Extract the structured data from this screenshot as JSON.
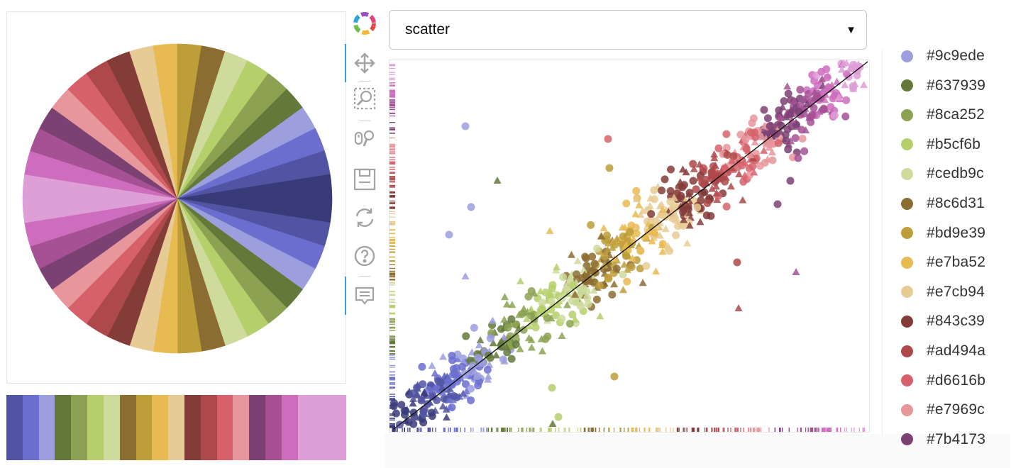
{
  "plot_type_select": {
    "value": "scatter"
  },
  "toolbar": {
    "tools": [
      {
        "name": "bokeh-logo",
        "icon": "bokeh-logo-icon"
      },
      {
        "name": "pan-tool",
        "icon": "pan-icon"
      },
      {
        "name": "box-zoom-tool",
        "icon": "box-zoom-icon"
      },
      {
        "name": "wheel-zoom-tool",
        "icon": "wheel-zoom-icon"
      },
      {
        "name": "save-tool",
        "icon": "save-icon"
      },
      {
        "name": "reset-tool",
        "icon": "reset-icon"
      },
      {
        "name": "help-tool",
        "icon": "help-icon"
      },
      {
        "name": "hover-tool",
        "icon": "hover-icon"
      }
    ]
  },
  "palette": [
    "#393b79",
    "#5254a3",
    "#6b6ecf",
    "#9c9ede",
    "#637939",
    "#8ca252",
    "#b5cf6b",
    "#cedb9c",
    "#8c6d31",
    "#bd9e39",
    "#e7ba52",
    "#e7cb94",
    "#843c39",
    "#ad494a",
    "#d6616b",
    "#e7969c",
    "#7b4173",
    "#a55194",
    "#ce6dbd",
    "#de9ed6"
  ],
  "legend": {
    "items": [
      {
        "label": "#9c9ede",
        "color": "#9c9ede"
      },
      {
        "label": "#637939",
        "color": "#637939"
      },
      {
        "label": "#8ca252",
        "color": "#8ca252"
      },
      {
        "label": "#b5cf6b",
        "color": "#b5cf6b"
      },
      {
        "label": "#cedb9c",
        "color": "#cedb9c"
      },
      {
        "label": "#8c6d31",
        "color": "#8c6d31"
      },
      {
        "label": "#bd9e39",
        "color": "#bd9e39"
      },
      {
        "label": "#e7ba52",
        "color": "#e7ba52"
      },
      {
        "label": "#e7cb94",
        "color": "#e7cb94"
      },
      {
        "label": "#843c39",
        "color": "#843c39"
      },
      {
        "label": "#ad494a",
        "color": "#ad494a"
      },
      {
        "label": "#d6616b",
        "color": "#d6616b"
      },
      {
        "label": "#e7969c",
        "color": "#e7969c"
      },
      {
        "label": "#7b4173",
        "color": "#7b4173"
      }
    ]
  }
}
